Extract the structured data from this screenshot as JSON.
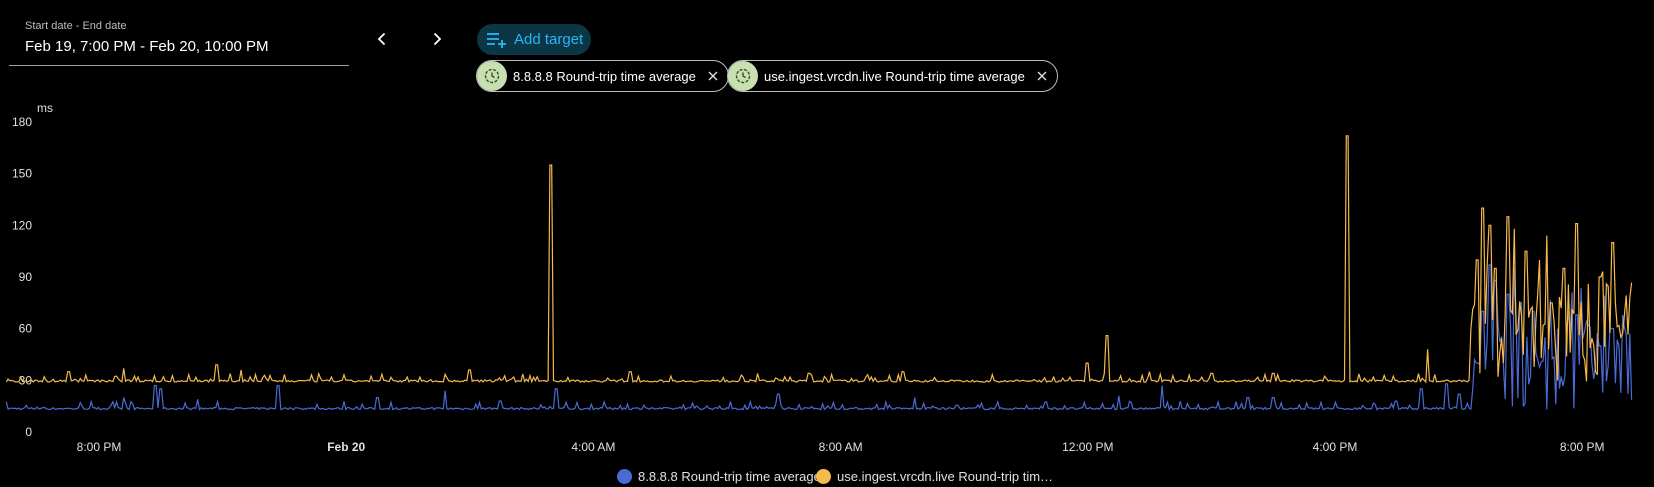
{
  "date_range": {
    "label": "Start date - End date",
    "value": "Feb 19, 7:00 PM - Feb 20, 10:00 PM"
  },
  "nav": {
    "prev_icon": "chevron-left-icon",
    "next_icon": "chevron-right-icon"
  },
  "add_target": {
    "label": "Add target",
    "icon": "playlist-add-icon",
    "color": "#29b6f6"
  },
  "targets": [
    {
      "label": "8.8.8.8 Round-trip time average",
      "icon": "clock-icon",
      "remove_icon": "close-icon"
    },
    {
      "label": "use.ingest.vrcdn.live Round-trip time average",
      "icon": "clock-icon",
      "remove_icon": "close-icon"
    }
  ],
  "legend": [
    {
      "label": "8.8.8.8 Round-trip time average",
      "color": "#4a6bd6"
    },
    {
      "label": "use.ingest.vrcdn.live Round-trip tim…",
      "color": "#f6b94b"
    }
  ],
  "chart_data": {
    "type": "line",
    "ylabel": "ms",
    "ylim": [
      0,
      180
    ],
    "yticks": [
      0,
      30,
      60,
      90,
      120,
      150,
      180
    ],
    "xlim_hours": [
      -5.5,
      20.8
    ],
    "xticks": [
      {
        "label": "8:00 PM",
        "hour": -4,
        "bold": false
      },
      {
        "label": "Feb 20",
        "hour": 0,
        "bold": true
      },
      {
        "label": "4:00 AM",
        "hour": 4,
        "bold": false
      },
      {
        "label": "8:00 AM",
        "hour": 8,
        "bold": false
      },
      {
        "label": "12:00 PM",
        "hour": 12,
        "bold": false
      },
      {
        "label": "4:00 PM",
        "hour": 16,
        "bold": false
      },
      {
        "label": "8:00 PM",
        "hour": 20,
        "bold": false
      }
    ],
    "grid": false,
    "legend_position": "bottom",
    "series": [
      {
        "name": "8.8.8.8 Round-trip time average",
        "color": "#4a6bd6",
        "baseline": 13,
        "points": [
          [
            -3.6,
            20
          ],
          [
            -3.1,
            27
          ],
          [
            -3.0,
            25
          ],
          [
            -2.4,
            19
          ],
          [
            -1.1,
            27
          ],
          [
            0.5,
            20
          ],
          [
            1.6,
            24
          ],
          [
            2.5,
            18
          ],
          [
            3.4,
            25
          ],
          [
            7.0,
            22
          ],
          [
            9.2,
            20
          ],
          [
            12.5,
            21
          ],
          [
            13.2,
            27
          ],
          [
            14.6,
            20
          ],
          [
            15.0,
            20
          ],
          [
            17.0,
            18
          ],
          [
            17.4,
            25
          ],
          [
            17.8,
            28
          ],
          [
            18.0,
            22
          ],
          [
            18.3,
            40
          ],
          [
            18.4,
            70
          ],
          [
            18.5,
            97
          ],
          [
            18.6,
            88
          ],
          [
            18.8,
            80
          ],
          [
            18.9,
            96
          ],
          [
            19.0,
            75
          ],
          [
            19.2,
            70
          ],
          [
            19.4,
            55
          ],
          [
            19.6,
            60
          ],
          [
            19.9,
            68
          ],
          [
            20.1,
            62
          ],
          [
            20.3,
            50
          ],
          [
            20.5,
            60
          ],
          [
            20.7,
            57
          ]
        ]
      },
      {
        "name": "use.ingest.vrcdn.live Round-trip time average",
        "color": "#f6b94b",
        "baseline": 29,
        "points": [
          [
            -4.5,
            35
          ],
          [
            -3.6,
            37
          ],
          [
            -2.1,
            39
          ],
          [
            -1.7,
            36
          ],
          [
            2.0,
            36
          ],
          [
            3.3,
            155
          ],
          [
            4.6,
            35
          ],
          [
            6.4,
            32
          ],
          [
            7.5,
            34
          ],
          [
            8.5,
            32
          ],
          [
            9.0,
            35
          ],
          [
            12.0,
            40
          ],
          [
            12.3,
            56
          ],
          [
            13.0,
            35
          ],
          [
            14.0,
            34
          ],
          [
            15.0,
            34
          ],
          [
            16.2,
            172
          ],
          [
            17.0,
            30
          ],
          [
            17.5,
            48
          ],
          [
            18.0,
            30
          ],
          [
            18.2,
            60
          ],
          [
            18.3,
            100
          ],
          [
            18.4,
            130
          ],
          [
            18.5,
            120
          ],
          [
            18.6,
            95
          ],
          [
            18.8,
            125
          ],
          [
            18.9,
            118
          ],
          [
            19.1,
            105
          ],
          [
            19.3,
            80
          ],
          [
            19.5,
            75
          ],
          [
            19.7,
            95
          ],
          [
            19.9,
            121
          ],
          [
            20.1,
            86
          ],
          [
            20.3,
            90
          ],
          [
            20.5,
            110
          ],
          [
            20.7,
            68
          ]
        ]
      }
    ]
  }
}
